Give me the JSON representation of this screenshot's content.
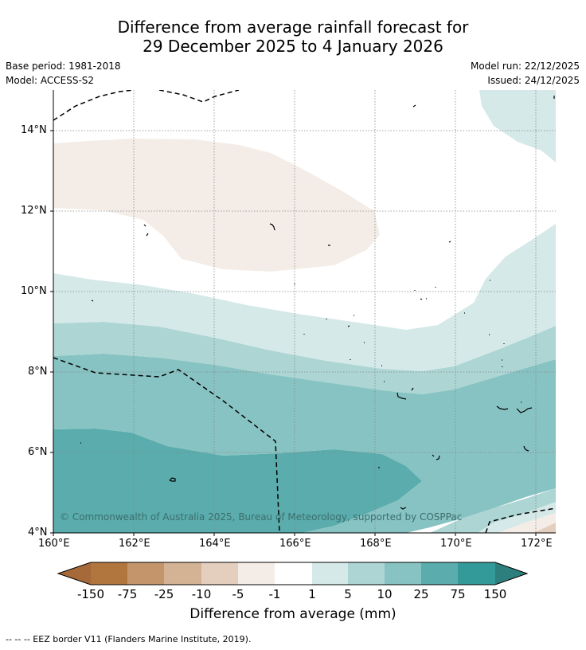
{
  "title": {
    "line1": "Difference from average rainfall forecast for",
    "line2": "29 December 2025 to 4 January 2026"
  },
  "meta": {
    "base_period": "Base period: 1981-2018",
    "model": "Model: ACCESS-S2",
    "model_run": "Model run: 22/12/2025",
    "issued": "Issued: 24/12/2025"
  },
  "axes": {
    "lat_ticks": [
      "14°N",
      "12°N",
      "10°N",
      "8°N",
      "6°N",
      "4°N"
    ],
    "lon_ticks": [
      "160°E",
      "162°E",
      "164°E",
      "166°E",
      "168°E",
      "170°E",
      "172°E"
    ]
  },
  "copyright": "© Commonwealth of Australia 2025, Bureau of Meteorology, supported by COSPPac",
  "colorbar": {
    "title": "Difference from average (mm)",
    "labels": [
      "-150",
      "-75",
      "-25",
      "-10",
      "-5",
      "-1",
      "1",
      "5",
      "10",
      "25",
      "75",
      "150"
    ],
    "colors": {
      "below_min": "#a5693a",
      "b1": "#b0763e",
      "b2": "#c4956a",
      "b3": "#d4b294",
      "b4": "#e4cfbf",
      "b5": "#f4ede7",
      "b6": "#ffffff",
      "b7": "#d5e9e8",
      "b8": "#acd5d4",
      "b9": "#87c3c2",
      "b10": "#5aacad",
      "b11": "#339999",
      "above_max": "#2d7f7e"
    }
  },
  "footnote": "-- -- -- EEZ border V11 (Flanders Marine Institute, 2019)."
}
